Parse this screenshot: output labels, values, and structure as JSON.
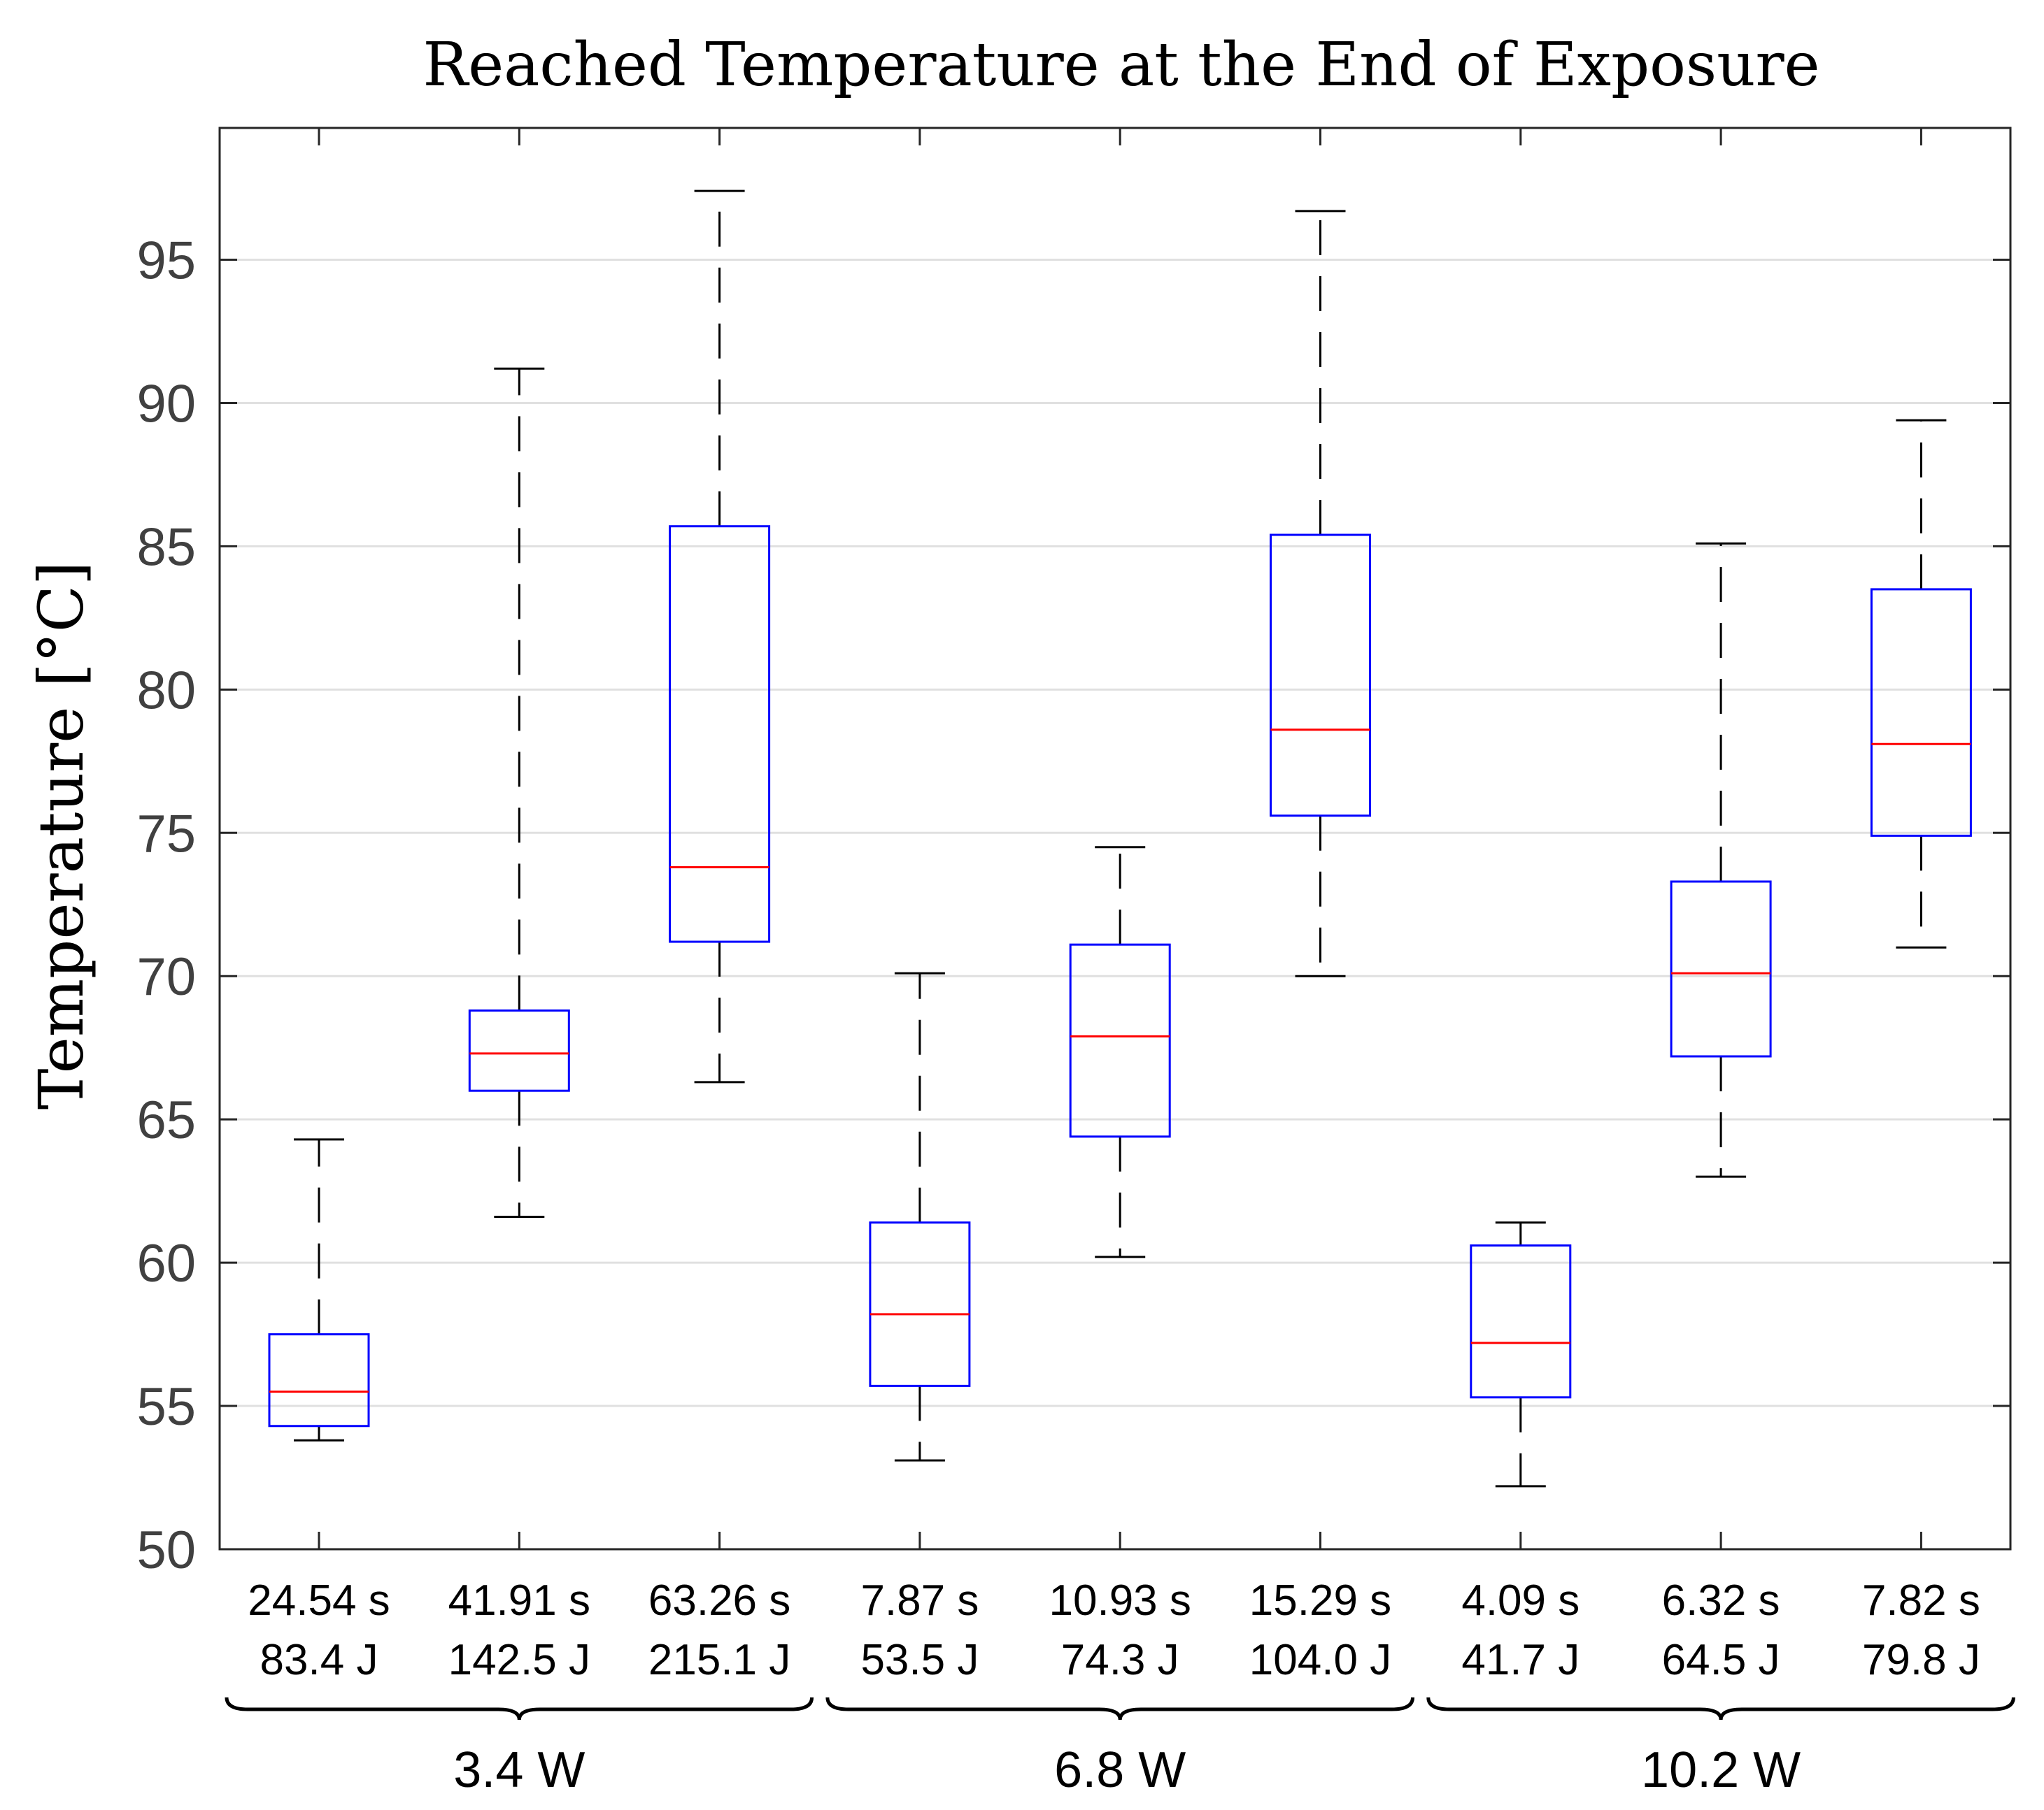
{
  "chart_data": {
    "type": "boxplot",
    "title": "Reached Temperature at the End of Exposure",
    "ylabel": "Temperature [°C]",
    "xlabel": "",
    "ylim": [
      50,
      99.6
    ],
    "yticks": [
      50,
      55,
      60,
      65,
      70,
      75,
      80,
      85,
      90,
      95
    ],
    "grid": "horizontal",
    "colors": {
      "box": "#0000ff",
      "median": "#ff0000",
      "whisker": "#000000",
      "grid": "#e0e0e0"
    },
    "groups": [
      {
        "label": "3.4 W",
        "categories": [
          0,
          1,
          2
        ]
      },
      {
        "label": "6.8 W",
        "categories": [
          3,
          4,
          5
        ]
      },
      {
        "label": "10.2 W",
        "categories": [
          6,
          7,
          8
        ]
      }
    ],
    "categories": [
      {
        "time": "24.54 s",
        "energy": "83.4 J",
        "whisker_low": 53.8,
        "q1": 54.3,
        "median": 55.5,
        "q3": 57.5,
        "whisker_high": 64.3
      },
      {
        "time": "41.91 s",
        "energy": "142.5 J",
        "whisker_low": 61.6,
        "q1": 66.0,
        "median": 67.3,
        "q3": 68.8,
        "whisker_high": 91.2
      },
      {
        "time": "63.26 s",
        "energy": "215.1 J",
        "whisker_low": 66.3,
        "q1": 71.2,
        "median": 73.8,
        "q3": 85.7,
        "whisker_high": 97.4
      },
      {
        "time": "7.87 s",
        "energy": "53.5 J",
        "whisker_low": 53.1,
        "q1": 55.7,
        "median": 58.2,
        "q3": 61.4,
        "whisker_high": 70.1
      },
      {
        "time": "10.93 s",
        "energy": "74.3 J",
        "whisker_low": 60.2,
        "q1": 64.4,
        "median": 67.9,
        "q3": 71.1,
        "whisker_high": 74.5
      },
      {
        "time": "15.29 s",
        "energy": "104.0 J",
        "whisker_low": 70.0,
        "q1": 75.6,
        "median": 78.6,
        "q3": 85.4,
        "whisker_high": 96.7
      },
      {
        "time": "4.09 s",
        "energy": "41.7 J",
        "whisker_low": 52.2,
        "q1": 55.3,
        "median": 57.2,
        "q3": 60.6,
        "whisker_high": 61.4
      },
      {
        "time": "6.32 s",
        "energy": "64.5 J",
        "whisker_low": 63.0,
        "q1": 67.2,
        "median": 70.1,
        "q3": 73.3,
        "whisker_high": 85.1
      },
      {
        "time": "7.82 s",
        "energy": "79.8 J",
        "whisker_low": 71.0,
        "q1": 74.9,
        "median": 78.1,
        "q3": 83.5,
        "whisker_high": 89.4
      }
    ]
  }
}
